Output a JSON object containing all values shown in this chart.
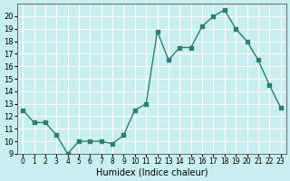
{
  "x": [
    0,
    1,
    2,
    3,
    4,
    5,
    6,
    7,
    8,
    9,
    10,
    11,
    12,
    13,
    14,
    15,
    16,
    17,
    18,
    19,
    20,
    21,
    22,
    23
  ],
  "y": [
    12.5,
    11.5,
    11.5,
    10.5,
    9.0,
    10.0,
    10.0,
    10.0,
    9.8,
    10.5,
    12.5,
    13.0,
    18.8,
    16.5,
    17.5,
    17.5,
    19.2,
    20.0,
    20.5,
    19.0,
    18.0,
    16.5,
    14.5,
    12.7
  ],
  "xlabel": "Humidex (Indice chaleur)",
  "ylim": [
    9,
    21
  ],
  "xlim": [
    -0.5,
    23.5
  ],
  "yticks": [
    9,
    10,
    11,
    12,
    13,
    14,
    15,
    16,
    17,
    18,
    19,
    20
  ],
  "xticks": [
    0,
    1,
    2,
    3,
    4,
    5,
    6,
    7,
    8,
    9,
    10,
    11,
    12,
    13,
    14,
    15,
    16,
    17,
    18,
    19,
    20,
    21,
    22,
    23
  ],
  "xtick_labels": [
    "0",
    "1",
    "2",
    "3",
    "4",
    "5",
    "6",
    "7",
    "8",
    "9",
    "10",
    "11",
    "12",
    "13",
    "14",
    "15",
    "16",
    "17",
    "18",
    "19",
    "20",
    "21",
    "22",
    "23"
  ],
  "line_color": "#2e7d6e",
  "marker_color": "#2e7d6e",
  "bg_color": "#c8eef0",
  "grid_color": "#ffffff",
  "axes_color": "#555555"
}
